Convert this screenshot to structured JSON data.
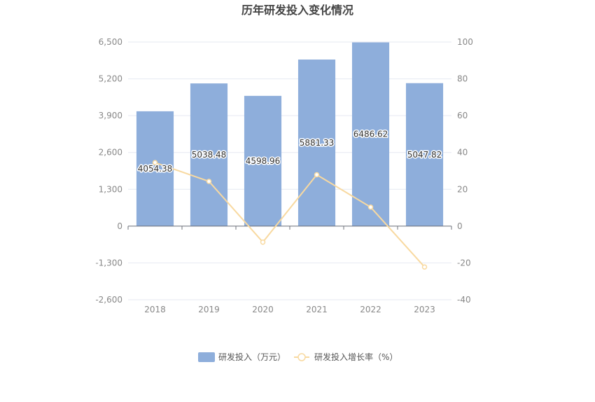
{
  "chart_data": {
    "type": "bar",
    "title": "历年研发投入变化情况",
    "categories": [
      "2018",
      "2019",
      "2020",
      "2021",
      "2022",
      "2023"
    ],
    "series": [
      {
        "name": "研发投入（万元）",
        "type": "bar",
        "axis": "left",
        "color": "#8eaedb",
        "values": [
          4054.38,
          5038.48,
          4598.96,
          5881.33,
          6486.62,
          5047.82
        ],
        "labels": [
          "4054.38",
          "5038.48",
          "4598.96",
          "5881.33",
          "6486.62",
          "5047.82"
        ]
      },
      {
        "name": "研发投入增长率（%）",
        "type": "line",
        "axis": "right",
        "color": "#f8d9a0",
        "values": [
          34.5,
          24.3,
          -8.7,
          27.9,
          10.3,
          -22.2
        ]
      }
    ],
    "y_left": {
      "min": -2600,
      "max": 6500,
      "ticks": [
        "6,500",
        "5,200",
        "3,900",
        "2,600",
        "1,300",
        "0",
        "-1,300",
        "-2,600"
      ]
    },
    "y_right": {
      "min": -40,
      "max": 100,
      "ticks": [
        "100",
        "80",
        "60",
        "40",
        "20",
        "0",
        "-20",
        "-40"
      ]
    },
    "grid": true,
    "legend_position": "bottom"
  }
}
